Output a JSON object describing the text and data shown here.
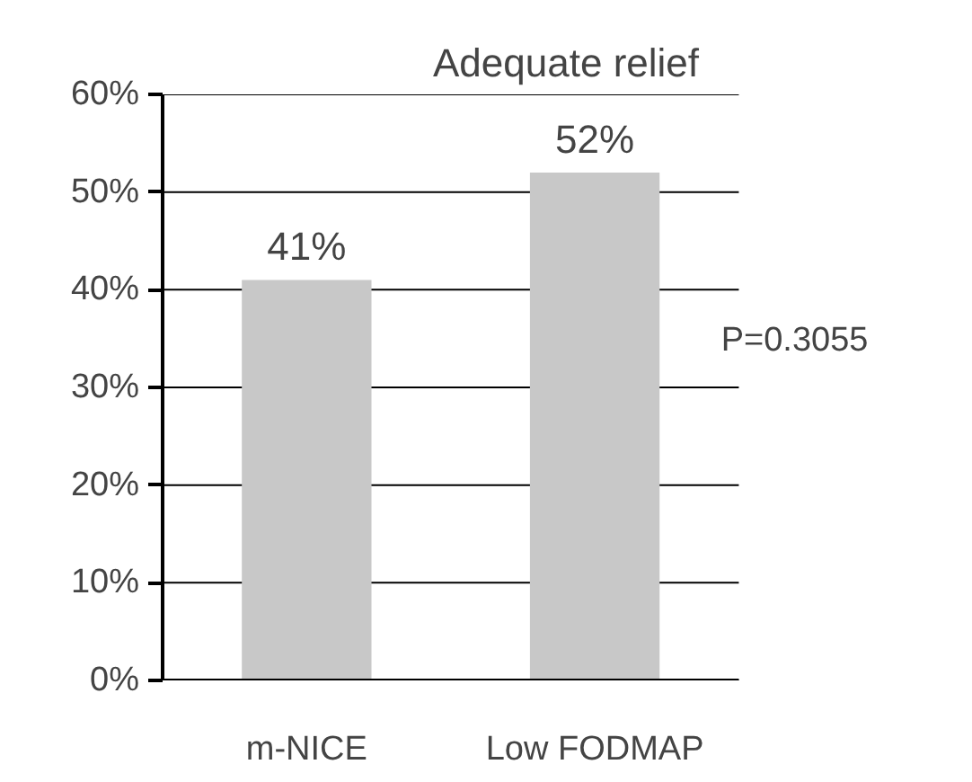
{
  "chart_data": {
    "type": "bar",
    "title": "Adequate relief",
    "categories": [
      "m-NICE",
      "Low FODMAP"
    ],
    "values": [
      41,
      52
    ],
    "color": "#c8c8c8",
    "value_labels": [
      "41%",
      "52%"
    ],
    "ylim": [
      0,
      60
    ],
    "yticks": [
      {
        "value": 0,
        "label": "0%"
      },
      {
        "value": 10,
        "label": "10%"
      },
      {
        "value": 20,
        "label": "20%"
      },
      {
        "value": 30,
        "label": "30%"
      },
      {
        "value": 40,
        "label": "40%"
      },
      {
        "value": 50,
        "label": "50%"
      },
      {
        "value": 60,
        "label": "60%"
      }
    ],
    "grid": "y",
    "annotations": [
      "P=0.3055"
    ]
  }
}
